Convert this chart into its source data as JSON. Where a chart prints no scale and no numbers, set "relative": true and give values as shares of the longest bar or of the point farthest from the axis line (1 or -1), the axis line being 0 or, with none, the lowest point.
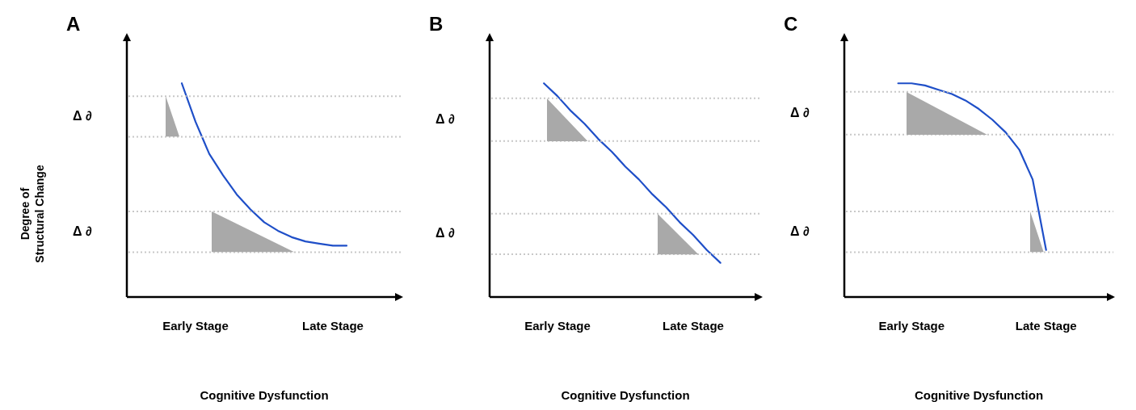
{
  "chart_data": [
    {
      "type": "line",
      "title": "A",
      "xlabel": "Cognitive Dysfunction",
      "ylabel": "Degree of Structural Change",
      "relative": true,
      "tick_labels": "x",
      "marker": "none",
      "line_style": "solid",
      "categories": [
        null,
        null,
        null,
        null,
        null,
        "Early Stage",
        null,
        null,
        null,
        null,
        null,
        null,
        null,
        null,
        null,
        "Late Stage",
        null,
        null,
        null,
        null,
        null
      ],
      "series": [
        {
          "color": "#1f4fc8",
          "values": [
            null,
            null,
            null,
            null,
            1,
            0.82,
            0.67,
            0.57,
            0.48,
            0.41,
            0.35,
            0.31,
            0.28,
            0.26,
            0.25,
            0.24,
            0.24,
            null,
            null,
            null,
            null
          ]
        }
      ],
      "ref_lines": [
        {
          "axis": "y",
          "value": 0.94,
          "color": "#c8c8c8",
          "line_style": "dotted"
        },
        {
          "axis": "y",
          "value": 0.75,
          "color": "#c8c8c8",
          "line_style": "dotted"
        },
        {
          "axis": "y",
          "value": 0.4,
          "color": "#c8c8c8",
          "line_style": "dotted"
        },
        {
          "axis": "y",
          "value": 0.21,
          "color": "#c8c8c8",
          "line_style": "dotted"
        }
      ],
      "annotations": [
        "Δ ∂",
        "Δ ∂"
      ]
    },
    {
      "type": "line",
      "title": "B",
      "xlabel": "Cognitive Dysfunction",
      "relative": true,
      "tick_labels": "x",
      "marker": "none",
      "line_style": "solid",
      "categories": [
        null,
        null,
        null,
        null,
        null,
        "Early Stage",
        null,
        null,
        null,
        null,
        null,
        null,
        null,
        null,
        null,
        "Late Stage",
        null,
        null,
        null,
        null,
        null
      ],
      "series": [
        {
          "color": "#1f4fc8",
          "values": [
            null,
            null,
            null,
            null,
            1,
            0.94,
            0.87,
            0.81,
            0.74,
            0.68,
            0.61,
            0.55,
            0.48,
            0.42,
            0.35,
            0.29,
            0.22,
            0.16,
            null,
            null,
            null
          ]
        }
      ],
      "ref_lines": [
        {
          "axis": "y",
          "value": 0.93,
          "color": "#c8c8c8",
          "line_style": "dotted"
        },
        {
          "axis": "y",
          "value": 0.73,
          "color": "#c8c8c8",
          "line_style": "dotted"
        },
        {
          "axis": "y",
          "value": 0.39,
          "color": "#c8c8c8",
          "line_style": "dotted"
        },
        {
          "axis": "y",
          "value": 0.2,
          "color": "#c8c8c8",
          "line_style": "dotted"
        }
      ],
      "annotations": [
        "Δ ∂",
        "Δ ∂"
      ]
    },
    {
      "type": "line",
      "title": "C",
      "xlabel": "Cognitive Dysfunction",
      "relative": true,
      "tick_labels": "x",
      "marker": "none",
      "line_style": "solid",
      "categories": [
        null,
        null,
        null,
        null,
        null,
        "Early Stage",
        null,
        null,
        null,
        null,
        null,
        null,
        null,
        null,
        null,
        "Late Stage",
        null,
        null,
        null,
        null,
        null
      ],
      "series": [
        {
          "color": "#1f4fc8",
          "values": [
            null,
            null,
            null,
            null,
            1,
            1,
            0.99,
            0.97,
            0.95,
            0.92,
            0.88,
            0.83,
            0.77,
            0.69,
            0.55,
            0.22,
            null,
            null,
            null,
            null,
            null
          ]
        }
      ],
      "ref_lines": [
        {
          "axis": "y",
          "value": 0.96,
          "color": "#c8c8c8",
          "line_style": "dotted"
        },
        {
          "axis": "y",
          "value": 0.76,
          "color": "#c8c8c8",
          "line_style": "dotted"
        },
        {
          "axis": "y",
          "value": 0.4,
          "color": "#c8c8c8",
          "line_style": "dotted"
        },
        {
          "axis": "y",
          "value": 0.21,
          "color": "#c8c8c8",
          "line_style": "dotted"
        }
      ],
      "annotations": [
        "Δ ∂",
        "Δ ∂"
      ]
    }
  ]
}
